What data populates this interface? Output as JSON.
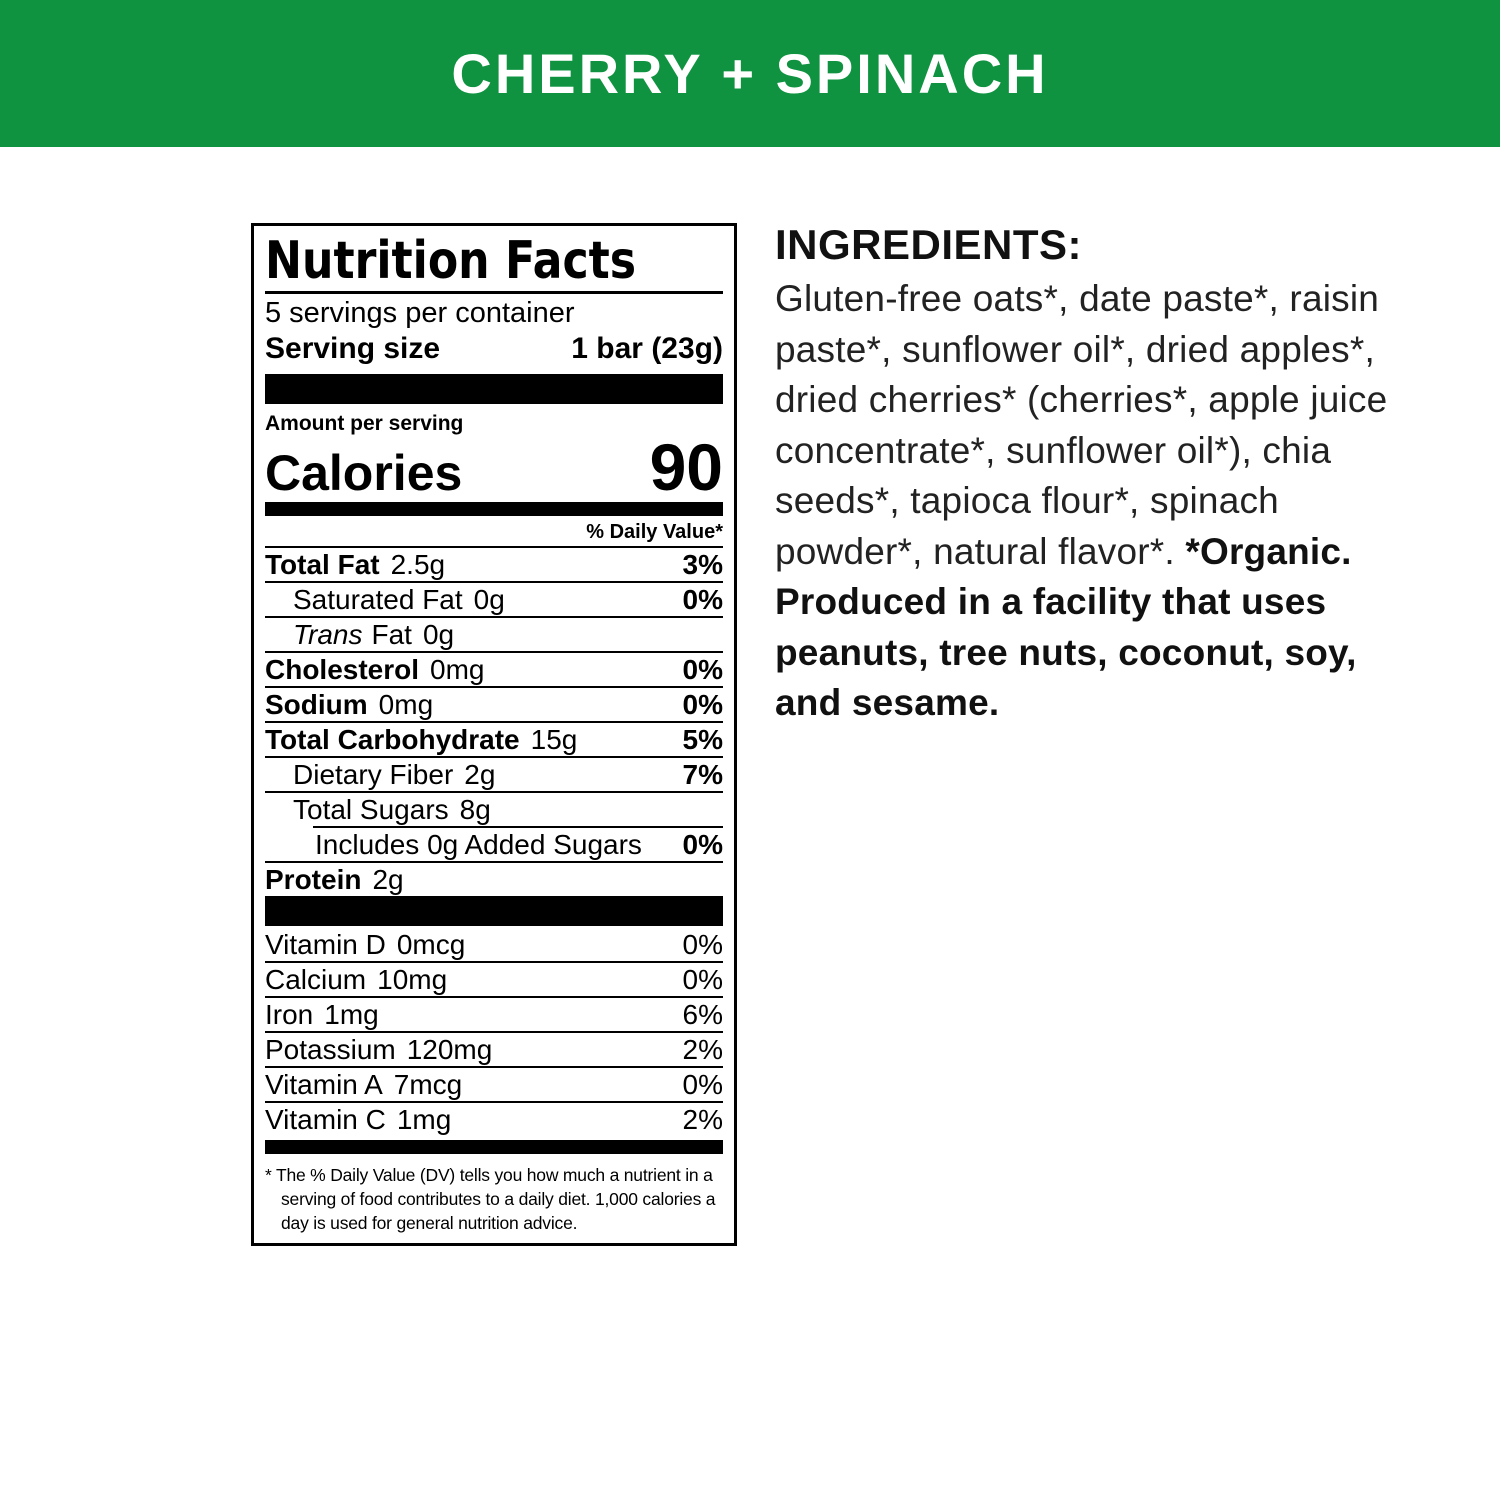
{
  "banner": {
    "title": "CHERRY + SPINACH",
    "bg_color": "#0f9340",
    "text_color": "#ffffff"
  },
  "label": {
    "title": "Nutrition Facts",
    "servings_per_container": "5 servings per container",
    "serving_size_label": "Serving size",
    "serving_size_value": "1 bar (23g)",
    "amount_per_serving": "Amount per serving",
    "calories_label": "Calories",
    "calories_value": "90",
    "daily_value_header": "% Daily Value*",
    "rows": [
      {
        "label": "Total Fat",
        "amount": "2.5g",
        "dv": "3%"
      },
      {
        "label": "Saturated Fat",
        "amount": "0g",
        "dv": "0%"
      },
      {
        "label_italic": "Trans",
        "label": "Fat",
        "amount": "0g",
        "dv": ""
      },
      {
        "label": "Cholesterol",
        "amount": "0mg",
        "dv": "0%"
      },
      {
        "label": "Sodium",
        "amount": "0mg",
        "dv": "0%"
      },
      {
        "label": "Total Carbohydrate",
        "amount": "15g",
        "dv": "5%"
      },
      {
        "label": "Dietary Fiber",
        "amount": "2g",
        "dv": "7%"
      },
      {
        "label": "Total Sugars",
        "amount": "8g",
        "dv": ""
      },
      {
        "label": "Includes 0g Added Sugars",
        "amount": "",
        "dv": "0%"
      },
      {
        "label": "Protein",
        "amount": "2g",
        "dv": ""
      }
    ],
    "vitamins": [
      {
        "label": "Vitamin D",
        "amount": "0mcg",
        "dv": "0%"
      },
      {
        "label": "Calcium",
        "amount": "10mg",
        "dv": "0%"
      },
      {
        "label": "Iron",
        "amount": "1mg",
        "dv": "6%"
      },
      {
        "label": "Potassium",
        "amount": "120mg",
        "dv": "2%"
      },
      {
        "label": "Vitamin A",
        "amount": "7mcg",
        "dv": "0%"
      },
      {
        "label": "Vitamin C",
        "amount": "1mg",
        "dv": "2%"
      }
    ],
    "footnote": "* The % Daily Value (DV) tells you how much a nutrient in a serving of food contributes to a daily diet. 1,000 calories a day is used for general nutrition advice."
  },
  "ingredients": {
    "heading": "INGREDIENTS:",
    "text_regular": "Gluten-free oats*, date paste*, raisin paste*, sunflower oil*, dried apples*, dried cherries* (cherries*, apple juice concentrate*, sunflower oil*), chia seeds*, tapioca flour*, spinach powder*, natural flavor*. ",
    "text_bold": "*Organic. Produced in a facility that uses peanuts, tree nuts, coconut, soy, and sesame."
  }
}
